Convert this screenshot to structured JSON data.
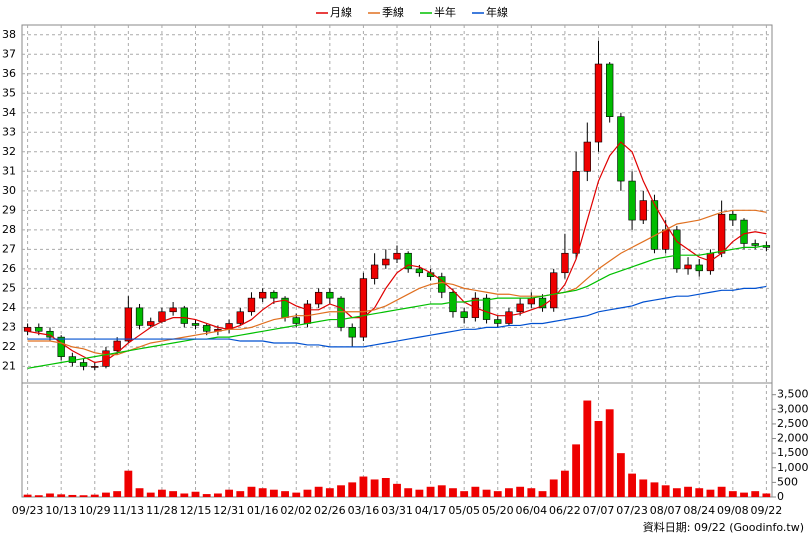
{
  "chart_data": {
    "type": "candlestick",
    "categories": [
      "09/23",
      null,
      null,
      "10/13",
      null,
      null,
      "10/29",
      null,
      null,
      "11/13",
      null,
      null,
      "11/28",
      null,
      null,
      "12/15",
      null,
      null,
      "12/31",
      null,
      null,
      "01/16",
      null,
      null,
      "02/02",
      null,
      null,
      "02/26",
      null,
      null,
      "03/16",
      null,
      null,
      "03/31",
      null,
      null,
      "04/17",
      null,
      null,
      "05/05",
      null,
      null,
      "05/20",
      null,
      null,
      "06/04",
      null,
      null,
      "06/22",
      null,
      null,
      "07/07",
      null,
      null,
      "07/23",
      null,
      null,
      "08/07",
      null,
      null,
      "08/24",
      null,
      null,
      "09/08",
      null,
      null,
      "09/22"
    ],
    "open": [
      22.8,
      23.0,
      22.8,
      22.5,
      21.5,
      21.2,
      21.0,
      21.0,
      21.8,
      22.3,
      24.0,
      23.1,
      23.3,
      23.8,
      24.0,
      23.2,
      23.1,
      22.8,
      22.9,
      23.2,
      23.8,
      24.5,
      24.8,
      24.5,
      23.5,
      23.2,
      24.2,
      24.8,
      24.5,
      23.0,
      22.5,
      25.5,
      26.2,
      26.5,
      26.8,
      26.0,
      25.8,
      25.6,
      24.8,
      23.8,
      23.5,
      24.5,
      23.4,
      23.2,
      23.8,
      24.2,
      24.5,
      24.0,
      25.8,
      26.8,
      31.0,
      32.5,
      36.5,
      33.8,
      30.5,
      28.5,
      29.5,
      27.0,
      28.0,
      26.0,
      26.2,
      25.9,
      26.8,
      28.8,
      28.5,
      27.3,
      27.2
    ],
    "high": [
      23.2,
      23.2,
      23.0,
      22.6,
      21.7,
      21.4,
      21.2,
      22.0,
      22.5,
      24.6,
      24.2,
      23.5,
      24.0,
      24.3,
      24.1,
      23.4,
      23.2,
      23.1,
      23.4,
      24.0,
      24.8,
      25.0,
      24.9,
      24.6,
      23.7,
      24.4,
      25.0,
      25.0,
      24.6,
      23.2,
      25.8,
      26.8,
      27.0,
      27.2,
      26.9,
      26.2,
      26.0,
      25.8,
      25.0,
      24.0,
      24.8,
      24.7,
      23.6,
      24.0,
      24.5,
      24.8,
      24.7,
      26.0,
      27.8,
      32.0,
      33.5,
      37.7,
      36.6,
      34.0,
      31.0,
      30.0,
      29.8,
      28.5,
      28.2,
      26.6,
      26.5,
      27.0,
      29.5,
      29.0,
      28.6,
      27.5,
      27.4
    ],
    "low": [
      22.6,
      22.6,
      22.3,
      21.3,
      21.0,
      20.8,
      20.8,
      20.9,
      21.6,
      22.2,
      22.9,
      23.0,
      23.2,
      23.6,
      23.0,
      22.9,
      22.6,
      22.6,
      22.7,
      23.1,
      23.6,
      24.3,
      24.2,
      23.3,
      23.0,
      23.0,
      24.0,
      24.2,
      22.8,
      22.0,
      22.3,
      25.2,
      26.0,
      26.3,
      25.8,
      25.6,
      25.4,
      24.5,
      23.5,
      23.2,
      23.3,
      23.2,
      23.0,
      23.1,
      23.6,
      24.0,
      23.8,
      23.8,
      25.5,
      26.5,
      30.5,
      32.0,
      33.5,
      30.0,
      28.0,
      28.3,
      26.8,
      26.8,
      25.8,
      25.7,
      25.6,
      25.7,
      26.6,
      28.2,
      27.0,
      27.0,
      26.9
    ],
    "close": [
      23.0,
      22.8,
      22.5,
      21.5,
      21.2,
      21.0,
      21.0,
      21.8,
      22.3,
      24.0,
      23.1,
      23.3,
      23.8,
      24.0,
      23.2,
      23.1,
      22.8,
      22.9,
      23.2,
      23.8,
      24.5,
      24.8,
      24.5,
      23.5,
      23.2,
      24.2,
      24.8,
      24.5,
      23.0,
      22.5,
      25.5,
      26.2,
      26.5,
      26.8,
      26.0,
      25.8,
      25.6,
      24.8,
      23.8,
      23.5,
      24.5,
      23.4,
      23.2,
      23.8,
      24.2,
      24.5,
      24.0,
      25.8,
      26.8,
      31.0,
      32.5,
      36.5,
      33.8,
      30.5,
      28.5,
      29.5,
      27.0,
      28.0,
      26.0,
      26.2,
      25.9,
      26.8,
      28.8,
      28.5,
      27.3,
      27.2,
      27.1
    ],
    "up_color": "#ee0000",
    "down_color": "#00bb00",
    "series": [
      {
        "name": "月線",
        "color": "#e00000",
        "values": [
          22.8,
          22.7,
          22.6,
          22.2,
          21.8,
          21.5,
          21.2,
          21.3,
          21.7,
          22.2,
          22.6,
          23.0,
          23.3,
          23.5,
          23.5,
          23.4,
          23.2,
          23.0,
          22.9,
          23.1,
          23.4,
          23.9,
          24.3,
          24.4,
          24.1,
          23.9,
          23.9,
          24.2,
          24.0,
          23.5,
          23.5,
          24.0,
          25.0,
          25.8,
          26.2,
          26.1,
          25.8,
          25.4,
          24.9,
          24.3,
          24.0,
          23.8,
          23.6,
          23.6,
          23.7,
          23.9,
          24.1,
          24.5,
          25.2,
          26.5,
          28.5,
          30.5,
          31.8,
          32.5,
          32.0,
          30.5,
          29.3,
          28.3,
          27.4,
          27.0,
          26.6,
          26.4,
          26.8,
          27.4,
          27.8,
          27.9,
          27.8
        ]
      },
      {
        "name": "季線",
        "color": "#e07020",
        "values": [
          22.3,
          22.3,
          22.3,
          22.2,
          22.0,
          21.9,
          21.7,
          21.6,
          21.6,
          21.8,
          22.0,
          22.2,
          22.3,
          22.4,
          22.5,
          22.6,
          22.7,
          22.8,
          22.9,
          22.9,
          23.0,
          23.2,
          23.4,
          23.5,
          23.6,
          23.6,
          23.7,
          23.8,
          23.8,
          23.8,
          23.8,
          23.9,
          24.1,
          24.4,
          24.7,
          25.0,
          25.2,
          25.3,
          25.2,
          25.0,
          24.9,
          24.8,
          24.7,
          24.7,
          24.6,
          24.6,
          24.6,
          24.7,
          24.8,
          25.0,
          25.5,
          26.0,
          26.4,
          26.8,
          27.1,
          27.4,
          27.7,
          28.0,
          28.3,
          28.4,
          28.5,
          28.7,
          28.9,
          29.0,
          29.0,
          29.0,
          28.9
        ]
      },
      {
        "name": "半年",
        "color": "#00c000",
        "values": [
          20.9,
          21.0,
          21.1,
          21.2,
          21.3,
          21.4,
          21.5,
          21.6,
          21.7,
          21.8,
          21.9,
          22.0,
          22.1,
          22.2,
          22.3,
          22.4,
          22.4,
          22.5,
          22.5,
          22.6,
          22.7,
          22.8,
          22.9,
          23.0,
          23.1,
          23.2,
          23.3,
          23.4,
          23.4,
          23.5,
          23.6,
          23.7,
          23.8,
          23.9,
          24.0,
          24.1,
          24.2,
          24.2,
          24.3,
          24.3,
          24.4,
          24.4,
          24.5,
          24.5,
          24.5,
          24.5,
          24.6,
          24.7,
          24.8,
          24.9,
          25.1,
          25.4,
          25.7,
          25.9,
          26.1,
          26.3,
          26.5,
          26.6,
          26.7,
          26.7,
          26.7,
          26.8,
          26.9,
          27.0,
          27.1,
          27.1,
          27.2
        ]
      },
      {
        "name": "年線",
        "color": "#0050d0",
        "values": [
          22.4,
          22.4,
          22.4,
          22.4,
          22.4,
          22.4,
          22.4,
          22.4,
          22.4,
          22.4,
          22.4,
          22.4,
          22.4,
          22.4,
          22.4,
          22.4,
          22.4,
          22.4,
          22.4,
          22.3,
          22.3,
          22.3,
          22.2,
          22.2,
          22.2,
          22.1,
          22.1,
          22.0,
          22.0,
          22.0,
          22.0,
          22.1,
          22.2,
          22.3,
          22.4,
          22.5,
          22.6,
          22.7,
          22.8,
          22.9,
          22.9,
          23.0,
          23.0,
          23.1,
          23.1,
          23.2,
          23.2,
          23.3,
          23.4,
          23.5,
          23.6,
          23.8,
          23.9,
          24.0,
          24.1,
          24.3,
          24.4,
          24.5,
          24.6,
          24.6,
          24.7,
          24.8,
          24.9,
          24.9,
          25.0,
          25.0,
          25.1
        ]
      }
    ],
    "ylim": [
      20.2,
      38.5
    ],
    "yticks": [
      21,
      22,
      23,
      24,
      25,
      26,
      27,
      28,
      29,
      30,
      31,
      32,
      33,
      34,
      35,
      36,
      37,
      38
    ],
    "volume": {
      "color": "#ee0000",
      "values": [
        80,
        60,
        120,
        90,
        70,
        60,
        80,
        150,
        200,
        900,
        300,
        150,
        250,
        200,
        120,
        180,
        100,
        120,
        250,
        200,
        350,
        300,
        250,
        200,
        150,
        250,
        350,
        300,
        400,
        500,
        700,
        600,
        650,
        450,
        300,
        250,
        350,
        400,
        300,
        200,
        350,
        250,
        200,
        300,
        350,
        300,
        200,
        600,
        900,
        1800,
        3300,
        2600,
        3000,
        1500,
        800,
        600,
        500,
        400,
        300,
        350,
        300,
        250,
        350,
        200,
        150,
        200,
        120
      ]
    },
    "y2lim": [
      0,
      3900
    ],
    "y2ticks": [
      0,
      500,
      {
        "value": 1000,
        "label": "1,000"
      },
      {
        "value": 1500,
        "label": "1,500"
      },
      {
        "value": 2000,
        "label": "2,000"
      },
      {
        "value": 2500,
        "label": "2,500"
      },
      {
        "value": 3000,
        "label": "3,000"
      },
      {
        "value": 3500,
        "label": "3,500"
      }
    ],
    "grid": true,
    "source_note": "資料日期: 09/22 (Goodinfo.tw)"
  }
}
